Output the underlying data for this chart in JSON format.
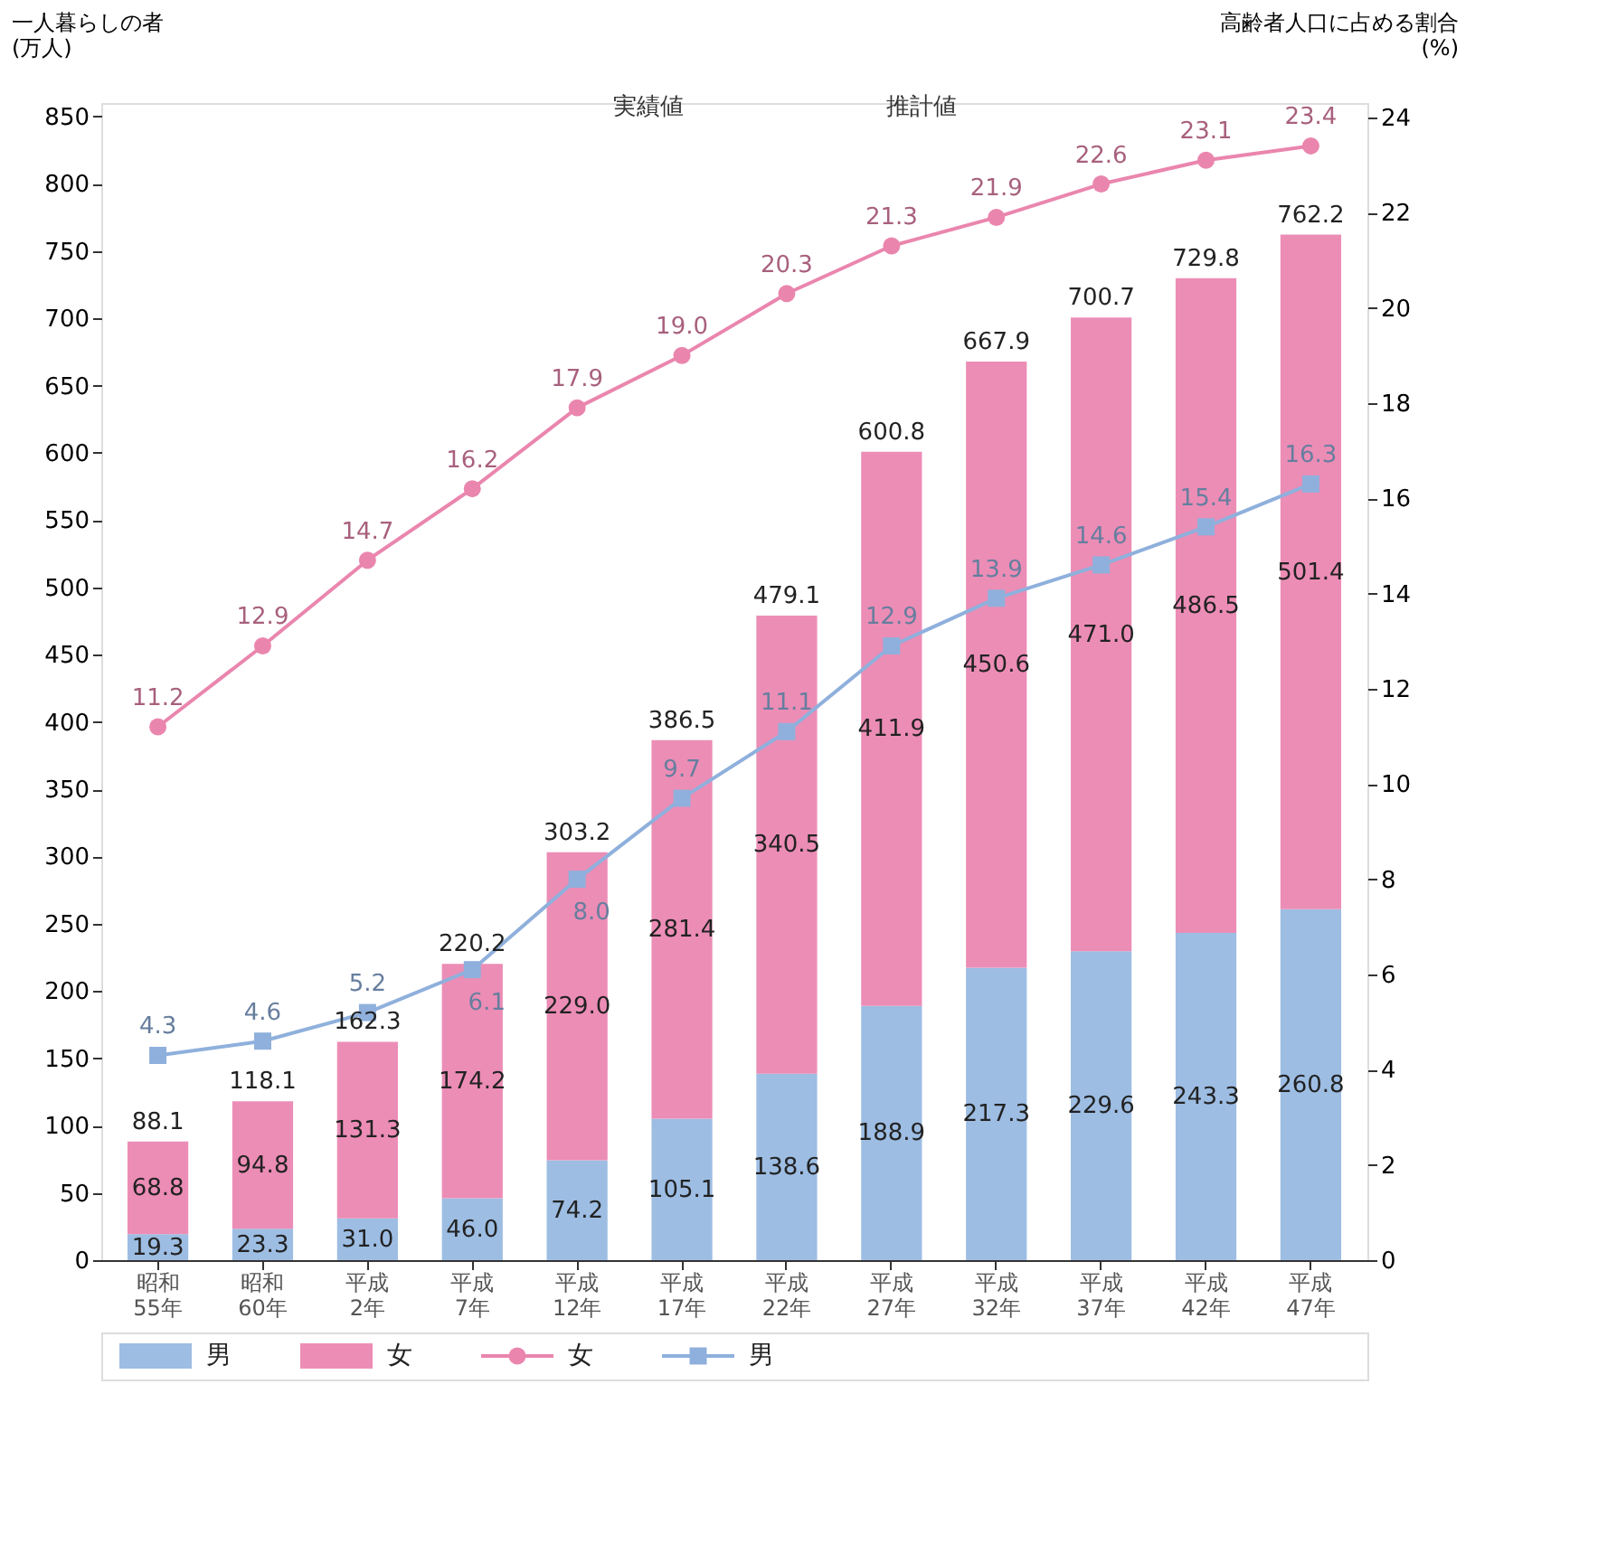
{
  "chart_data": {
    "type": "bar",
    "stacked": true,
    "data_labels": true,
    "ylabel": "一人暮らしの者\n(万人)",
    "y2label": "高齢者人口に占める割合\n(%)",
    "categories": [
      "昭和\n55年",
      "昭和\n60年",
      "平成\n2年",
      "平成\n7年",
      "平成\n12年",
      "平成\n17年",
      "平成\n22年",
      "平成\n27年",
      "平成\n32年",
      "平成\n37年",
      "平成\n42年",
      "平成\n47年"
    ],
    "series": [
      {
        "name": "男",
        "color": "#9dbde3",
        "values": [
          19.3,
          23.3,
          31.0,
          46.0,
          74.2,
          105.1,
          138.6,
          188.9,
          217.3,
          229.6,
          243.3,
          260.8
        ],
        "value_labels": [
          "19.3",
          "23.3",
          "31.0",
          "46.0",
          "74.2",
          "105.1",
          "138.6",
          "188.9",
          "217.3",
          "229.6",
          "243.3",
          "260.8"
        ]
      },
      {
        "name": "女",
        "color": "#ec8db6",
        "values": [
          68.8,
          94.8,
          131.3,
          174.2,
          229.0,
          281.4,
          340.5,
          411.9,
          450.6,
          471.0,
          486.5,
          501.4
        ],
        "value_labels": [
          "68.8",
          "94.8",
          "131.3",
          "174.2",
          "229.0",
          "281.4",
          "340.5",
          "411.9",
          "450.6",
          "471.0",
          "486.5",
          "501.4"
        ]
      },
      {
        "name": "女",
        "type": "line",
        "axis": "y2",
        "marker": "circle",
        "color": "#ea86ae",
        "values": [
          11.2,
          12.9,
          14.7,
          16.2,
          17.9,
          19.0,
          20.3,
          21.3,
          21.9,
          22.6,
          23.1,
          23.4
        ],
        "value_labels": [
          "11.2",
          "12.9",
          "14.7",
          "16.2",
          "17.9",
          "19.0",
          "20.3",
          "21.3",
          "21.9",
          "22.6",
          "23.1",
          "23.4"
        ]
      },
      {
        "name": "男",
        "type": "line",
        "axis": "y2",
        "marker": "square",
        "color": "#8fb0dc",
        "values": [
          4.3,
          4.6,
          5.2,
          6.1,
          8.0,
          9.7,
          11.1,
          12.9,
          13.9,
          14.6,
          15.4,
          16.3
        ],
        "value_labels": [
          "4.3",
          "4.6",
          "5.2",
          "6.1",
          "8.0",
          "9.7",
          "11.1",
          "12.9",
          "13.9",
          "14.6",
          "15.4",
          "16.3"
        ]
      }
    ],
    "totals": [
      "88.1",
      "118.1",
      "162.3",
      "220.2",
      "303.2",
      "386.5",
      "479.1",
      "600.8",
      "667.9",
      "700.7",
      "729.8",
      "762.2"
    ],
    "ylim": [
      0,
      860
    ],
    "yticks": [
      0,
      50,
      100,
      150,
      200,
      250,
      300,
      350,
      400,
      450,
      500,
      550,
      600,
      650,
      700,
      750,
      800,
      850
    ],
    "y2lim": [
      0,
      24.3
    ],
    "y2ticks": [
      0,
      2,
      4,
      6,
      8,
      10,
      12,
      14,
      16,
      18,
      20,
      22,
      24
    ],
    "annotations": [
      "実績値",
      "推計値"
    ],
    "legend": "bottom",
    "grid": false,
    "line_style": "solid"
  }
}
